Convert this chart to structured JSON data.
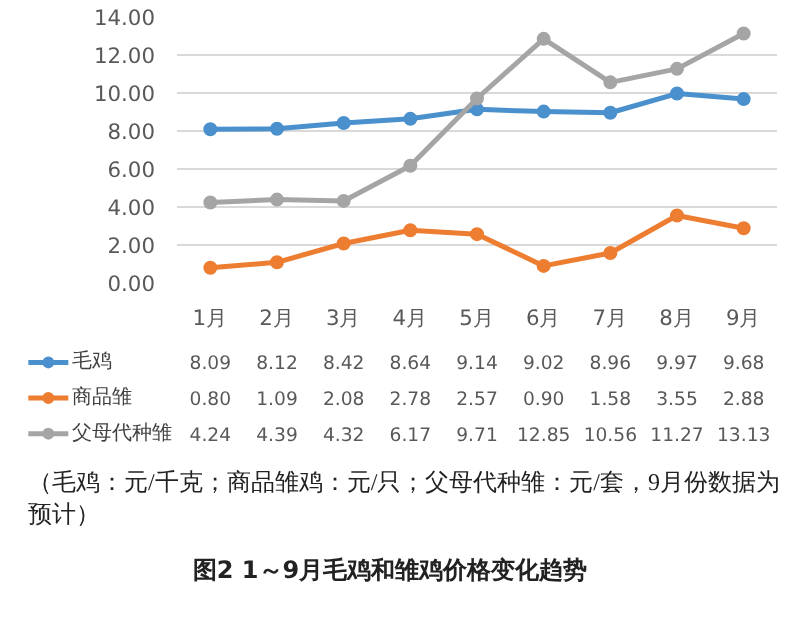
{
  "chart_data": {
    "type": "line",
    "title": "图2  1～9月毛鸡和雏鸡价格变化趋势",
    "annotations": [
      "（毛鸡：元/千克；商品雏鸡：元/只；父母代种雏：元/套，9月份数据为预计）"
    ],
    "categories": [
      "1月",
      "2月",
      "3月",
      "4月",
      "5月",
      "6月",
      "7月",
      "8月",
      "9月"
    ],
    "series": [
      {
        "name": "毛鸡",
        "color": "#4a90cd",
        "values": [
          8.09,
          8.12,
          8.42,
          8.64,
          9.14,
          9.02,
          8.96,
          9.97,
          9.68
        ],
        "value_labels": [
          "8.09",
          "8.12",
          "8.42",
          "8.64",
          "9.14",
          "9.02",
          "8.96",
          "9.97",
          "9.68"
        ]
      },
      {
        "name": "商品雏",
        "color": "#ed7d31",
        "values": [
          0.8,
          1.09,
          2.08,
          2.78,
          2.57,
          0.9,
          1.58,
          3.55,
          2.88
        ],
        "value_labels": [
          "0.80",
          "1.09",
          "2.08",
          "2.78",
          "2.57",
          "0.90",
          "1.58",
          "3.55",
          "2.88"
        ]
      },
      {
        "name": "父母代种雏",
        "color": "#a5a5a5",
        "values": [
          4.24,
          4.39,
          4.32,
          6.17,
          9.71,
          12.85,
          10.56,
          11.27,
          13.13
        ],
        "value_labels": [
          "4.24",
          "4.39",
          "4.32",
          "6.17",
          "9.71",
          "12.85",
          "10.56",
          "11.27",
          "13.13"
        ]
      }
    ],
    "ylim": [
      0,
      14
    ],
    "yticks": [
      {
        "value": 0,
        "label": "0.00"
      },
      {
        "value": 2,
        "label": "2.00"
      },
      {
        "value": 4,
        "label": "4.00"
      },
      {
        "value": 6,
        "label": "6.00"
      },
      {
        "value": 8,
        "label": "8.00"
      },
      {
        "value": 10,
        "label": "10.00"
      },
      {
        "value": 12,
        "label": "12.00"
      },
      {
        "value": 14,
        "label": "14.00"
      }
    ],
    "grid": "y",
    "marker": "circle",
    "line_style": "solid",
    "legend": "bottom"
  }
}
